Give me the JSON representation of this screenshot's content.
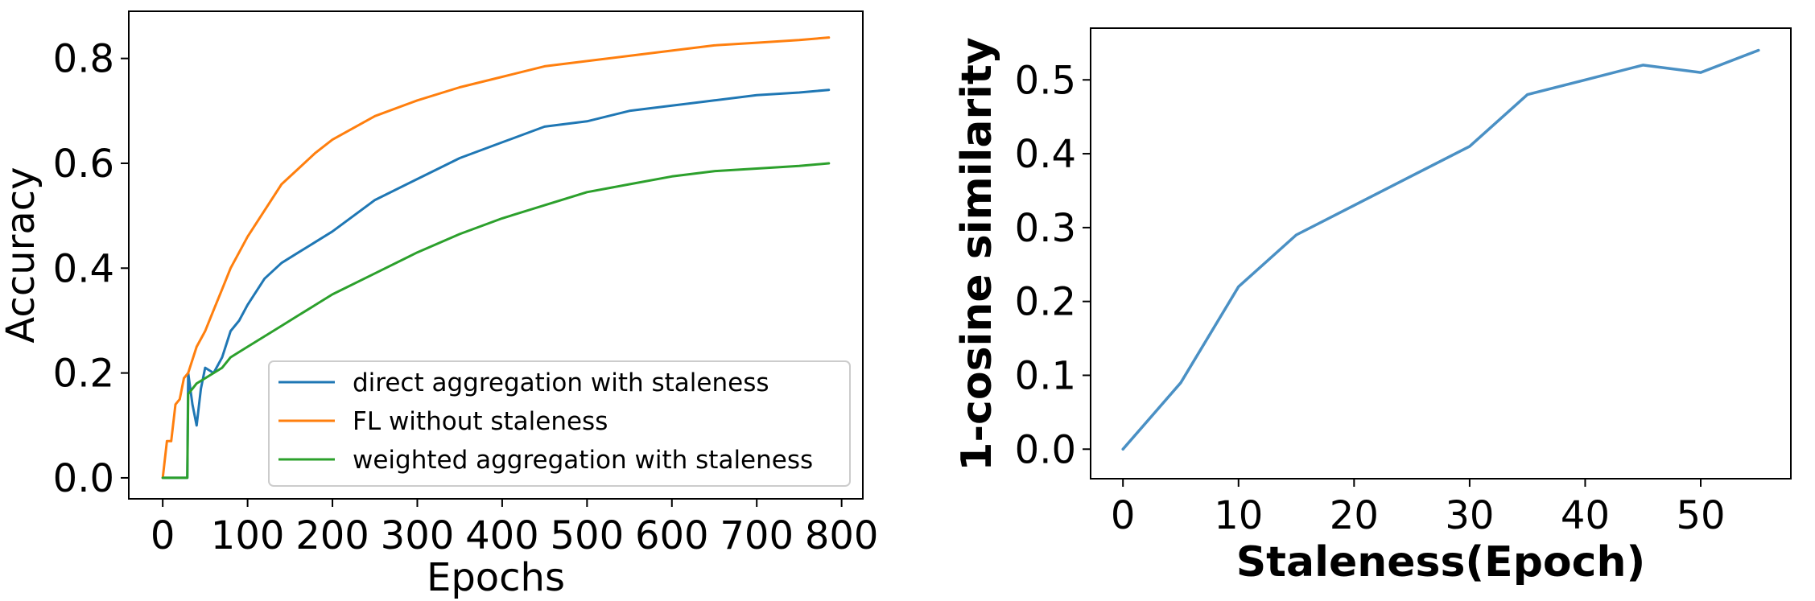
{
  "chart_data": [
    {
      "type": "line",
      "xlabel": "Epochs",
      "ylabel": "Accuracy",
      "xlim": [
        -40,
        825
      ],
      "ylim": [
        -0.04,
        0.89
      ],
      "xticks": [
        0,
        100,
        200,
        300,
        400,
        500,
        600,
        700,
        800
      ],
      "yticks": [
        0.0,
        0.2,
        0.4,
        0.6,
        0.8
      ],
      "xtick_labels": [
        "0",
        "100",
        "200",
        "300",
        "400",
        "500",
        "600",
        "700",
        "800"
      ],
      "ytick_labels": [
        "0.0",
        "0.2",
        "0.4",
        "0.6",
        "0.8"
      ],
      "legend_position": "lower-right",
      "series": [
        {
          "name": "direct aggregation with staleness",
          "color": "#1f77b4",
          "x": [
            0,
            10,
            20,
            29,
            30,
            35,
            40,
            45,
            50,
            60,
            70,
            80,
            90,
            100,
            120,
            140,
            160,
            180,
            200,
            250,
            300,
            350,
            400,
            450,
            500,
            550,
            600,
            650,
            700,
            750,
            785
          ],
          "y": [
            0,
            0,
            0,
            0,
            0.2,
            0.14,
            0.1,
            0.17,
            0.21,
            0.2,
            0.23,
            0.28,
            0.3,
            0.33,
            0.38,
            0.41,
            0.43,
            0.45,
            0.47,
            0.53,
            0.57,
            0.61,
            0.64,
            0.67,
            0.68,
            0.7,
            0.71,
            0.72,
            0.73,
            0.735,
            0.74
          ]
        },
        {
          "name": "FL without staleness",
          "color": "#ff7f0e",
          "x": [
            0,
            5,
            10,
            15,
            20,
            25,
            30,
            40,
            50,
            60,
            70,
            80,
            90,
            100,
            120,
            140,
            160,
            180,
            200,
            250,
            300,
            350,
            400,
            450,
            500,
            550,
            600,
            650,
            700,
            750,
            785
          ],
          "y": [
            0,
            0.07,
            0.07,
            0.14,
            0.15,
            0.19,
            0.2,
            0.25,
            0.28,
            0.32,
            0.36,
            0.4,
            0.43,
            0.46,
            0.51,
            0.56,
            0.59,
            0.62,
            0.645,
            0.69,
            0.72,
            0.745,
            0.765,
            0.785,
            0.795,
            0.805,
            0.815,
            0.825,
            0.83,
            0.835,
            0.84
          ]
        },
        {
          "name": "weighted aggregation with staleness",
          "color": "#2ca02c",
          "x": [
            0,
            10,
            20,
            29,
            30,
            35,
            40,
            50,
            60,
            70,
            80,
            90,
            100,
            120,
            140,
            160,
            180,
            200,
            250,
            300,
            350,
            400,
            450,
            500,
            550,
            600,
            650,
            700,
            750,
            785
          ],
          "y": [
            0,
            0,
            0,
            0,
            0.16,
            0.17,
            0.18,
            0.19,
            0.2,
            0.21,
            0.23,
            0.24,
            0.25,
            0.27,
            0.29,
            0.31,
            0.33,
            0.35,
            0.39,
            0.43,
            0.465,
            0.495,
            0.52,
            0.545,
            0.56,
            0.575,
            0.585,
            0.59,
            0.595,
            0.6
          ]
        }
      ]
    },
    {
      "type": "line",
      "xlabel": "Staleness(Epoch)",
      "ylabel": "1-cosine similarity",
      "xlim": [
        -2.8,
        57.8
      ],
      "ylim": [
        -0.04,
        0.57
      ],
      "xticks": [
        0,
        10,
        20,
        30,
        40,
        50
      ],
      "yticks": [
        0.0,
        0.1,
        0.2,
        0.3,
        0.4,
        0.5
      ],
      "xtick_labels": [
        "0",
        "10",
        "20",
        "30",
        "40",
        "50"
      ],
      "ytick_labels": [
        "0.0",
        "0.1",
        "0.2",
        "0.3",
        "0.4",
        "0.5"
      ],
      "series": [
        {
          "name": "",
          "color": "#4a90c4",
          "x": [
            0,
            5,
            10,
            15,
            20,
            25,
            30,
            35,
            40,
            45,
            50,
            55
          ],
          "y": [
            0.0,
            0.09,
            0.22,
            0.29,
            0.33,
            0.37,
            0.41,
            0.48,
            0.5,
            0.52,
            0.51,
            0.54
          ]
        }
      ]
    }
  ]
}
